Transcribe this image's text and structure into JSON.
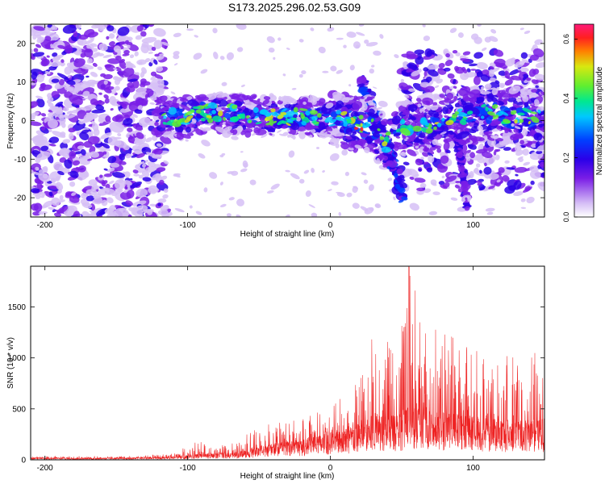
{
  "title": "S173.2025.296.02.53.G09",
  "chart_data": [
    {
      "type": "heatmap",
      "xlabel": "Height of straight line (km)",
      "ylabel": "Frequency (Hz)",
      "xlim": [
        -210,
        150
      ],
      "ylim": [
        -25,
        25
      ],
      "xticks": [
        -200,
        -100,
        0,
        100
      ],
      "yticks": [
        -20,
        -10,
        0,
        10,
        20
      ],
      "colorbar": {
        "label": "Normalized spectral amplitude",
        "range": [
          0,
          0.65
        ],
        "ticks": [
          0.0,
          0.2,
          0.4,
          0.6
        ],
        "colors": [
          "#ffffff",
          "#d6bff6",
          "#7a1ee6",
          "#2a00e8",
          "#0040ff",
          "#00c8ff",
          "#00e890",
          "#60ee30",
          "#d8e810",
          "#ff8000",
          "#ff2020",
          "#ff1a7a"
        ]
      },
      "ridge": [
        {
          "x": -122,
          "f": 1
        },
        {
          "x": -105,
          "f": 0.5
        },
        {
          "x": -90,
          "f": 2
        },
        {
          "x": -70,
          "f": 2
        },
        {
          "x": -50,
          "f": 1
        },
        {
          "x": -30,
          "f": 1
        },
        {
          "x": -10,
          "f": 1
        },
        {
          "x": 10,
          "f": 0
        },
        {
          "x": 20,
          "f": -1
        },
        {
          "x": 28,
          "f": -1
        },
        {
          "x": 38,
          "f": -6
        },
        {
          "x": 50,
          "f": -2
        },
        {
          "x": 70,
          "f": -1
        },
        {
          "x": 90,
          "f": 1
        },
        {
          "x": 110,
          "f": 2
        },
        {
          "x": 130,
          "f": 1
        },
        {
          "x": 150,
          "f": 1
        }
      ]
    },
    {
      "type": "line",
      "xlabel": "Height of straight line (km)",
      "ylabel": "SNR (10 * v/v)",
      "xlim": [
        -210,
        150
      ],
      "ylim": [
        0,
        1900
      ],
      "xticks": [
        -200,
        -100,
        0,
        100
      ],
      "yticks": [
        0,
        500,
        1000,
        1500
      ],
      "color": "#ee2222",
      "envelope": [
        {
          "x": -210,
          "base": 15,
          "peak": 40
        },
        {
          "x": -150,
          "base": 15,
          "peak": 35
        },
        {
          "x": -110,
          "base": 20,
          "peak": 60
        },
        {
          "x": -95,
          "base": 40,
          "peak": 180
        },
        {
          "x": -70,
          "base": 50,
          "peak": 150
        },
        {
          "x": -55,
          "base": 80,
          "peak": 280
        },
        {
          "x": -40,
          "base": 120,
          "peak": 380
        },
        {
          "x": -20,
          "base": 150,
          "peak": 420
        },
        {
          "x": 0,
          "base": 200,
          "peak": 520
        },
        {
          "x": 15,
          "base": 250,
          "peak": 700
        },
        {
          "x": 25,
          "base": 300,
          "peak": 1000
        },
        {
          "x": 32,
          "base": 350,
          "peak": 1550
        },
        {
          "x": 45,
          "base": 330,
          "peak": 1150
        },
        {
          "x": 55,
          "base": 400,
          "peak": 1900
        },
        {
          "x": 65,
          "base": 380,
          "peak": 1350
        },
        {
          "x": 80,
          "base": 350,
          "peak": 1250
        },
        {
          "x": 100,
          "base": 320,
          "peak": 1150
        },
        {
          "x": 125,
          "base": 300,
          "peak": 1100
        },
        {
          "x": 150,
          "base": 300,
          "peak": 1050
        }
      ]
    }
  ]
}
